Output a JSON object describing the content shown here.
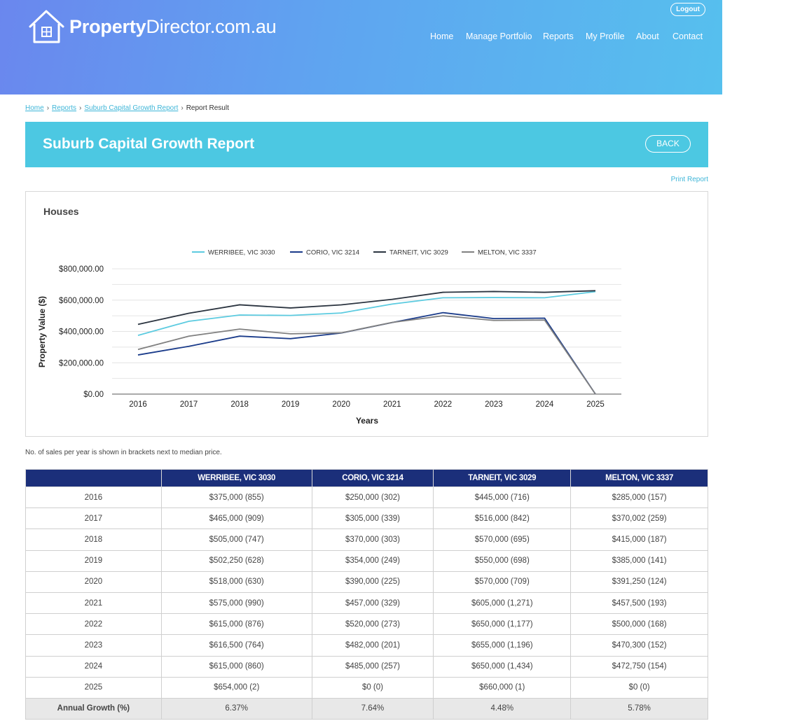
{
  "brand": {
    "bold": "Property",
    "rest": "Director.com.au"
  },
  "logout_label": "Logout",
  "nav": [
    "Home",
    "Manage Portfolio",
    "Reports",
    "My Profile",
    "About",
    "Contact"
  ],
  "breadcrumb": {
    "items": [
      "Home",
      "Reports",
      "Suburb Capital Growth Report"
    ],
    "current": "Report Result"
  },
  "page_title": "Suburb Capital Growth Report",
  "back_label": "BACK",
  "print_label": "Print Report",
  "chart_data": {
    "type": "line",
    "title": "Houses",
    "xlabel": "Years",
    "ylabel": "Property Value ($)",
    "ylim": [
      0,
      800000
    ],
    "yticks": [
      "$0.00",
      "$200,000.00",
      "$400,000.00",
      "$600,000.00",
      "$800,000.00"
    ],
    "legend_position": "top",
    "categories": [
      "2016",
      "2017",
      "2018",
      "2019",
      "2020",
      "2021",
      "2022",
      "2023",
      "2024",
      "2025"
    ],
    "series": [
      {
        "name": "WERRIBEE, VIC 3030",
        "color": "#5ccbe0",
        "values": [
          375000,
          465000,
          505000,
          502250,
          518000,
          575000,
          615000,
          616500,
          615000,
          654000
        ]
      },
      {
        "name": "CORIO, VIC 3214",
        "color": "#1a3b8a",
        "values": [
          250000,
          305000,
          370000,
          354000,
          390000,
          457000,
          520000,
          482000,
          485000,
          0
        ]
      },
      {
        "name": "TARNEIT, VIC 3029",
        "color": "#2b3440",
        "values": [
          445000,
          516000,
          570000,
          550000,
          570000,
          605000,
          650000,
          655000,
          650000,
          660000
        ]
      },
      {
        "name": "MELTON, VIC 3337",
        "color": "#808080",
        "values": [
          285000,
          370002,
          415000,
          385000,
          391250,
          457500,
          500000,
          470300,
          472750,
          0
        ]
      }
    ]
  },
  "note": "No. of sales per year is shown in brackets next to median price.",
  "table": {
    "headers": [
      "",
      "WERRIBEE, VIC 3030",
      "CORIO, VIC 3214",
      "TARNEIT, VIC 3029",
      "MELTON, VIC 3337"
    ],
    "rows": [
      [
        "2016",
        "$375,000 (855)",
        "$250,000 (302)",
        "$445,000 (716)",
        "$285,000 (157)"
      ],
      [
        "2017",
        "$465,000 (909)",
        "$305,000 (339)",
        "$516,000 (842)",
        "$370,002 (259)"
      ],
      [
        "2018",
        "$505,000 (747)",
        "$370,000 (303)",
        "$570,000 (695)",
        "$415,000 (187)"
      ],
      [
        "2019",
        "$502,250 (628)",
        "$354,000 (249)",
        "$550,000 (698)",
        "$385,000 (141)"
      ],
      [
        "2020",
        "$518,000 (630)",
        "$390,000 (225)",
        "$570,000 (709)",
        "$391,250 (124)"
      ],
      [
        "2021",
        "$575,000 (990)",
        "$457,000 (329)",
        "$605,000 (1,271)",
        "$457,500 (193)"
      ],
      [
        "2022",
        "$615,000 (876)",
        "$520,000 (273)",
        "$650,000 (1,177)",
        "$500,000 (168)"
      ],
      [
        "2023",
        "$616,500 (764)",
        "$482,000 (201)",
        "$655,000 (1,196)",
        "$470,300 (152)"
      ],
      [
        "2024",
        "$615,000 (860)",
        "$485,000 (257)",
        "$650,000 (1,434)",
        "$472,750 (154)"
      ],
      [
        "2025",
        "$654,000 (2)",
        "$0 (0)",
        "$660,000 (1)",
        "$0 (0)"
      ]
    ],
    "growth": [
      "Annual Growth (%)",
      "6.37%",
      "7.64%",
      "4.48%",
      "5.78%"
    ]
  }
}
